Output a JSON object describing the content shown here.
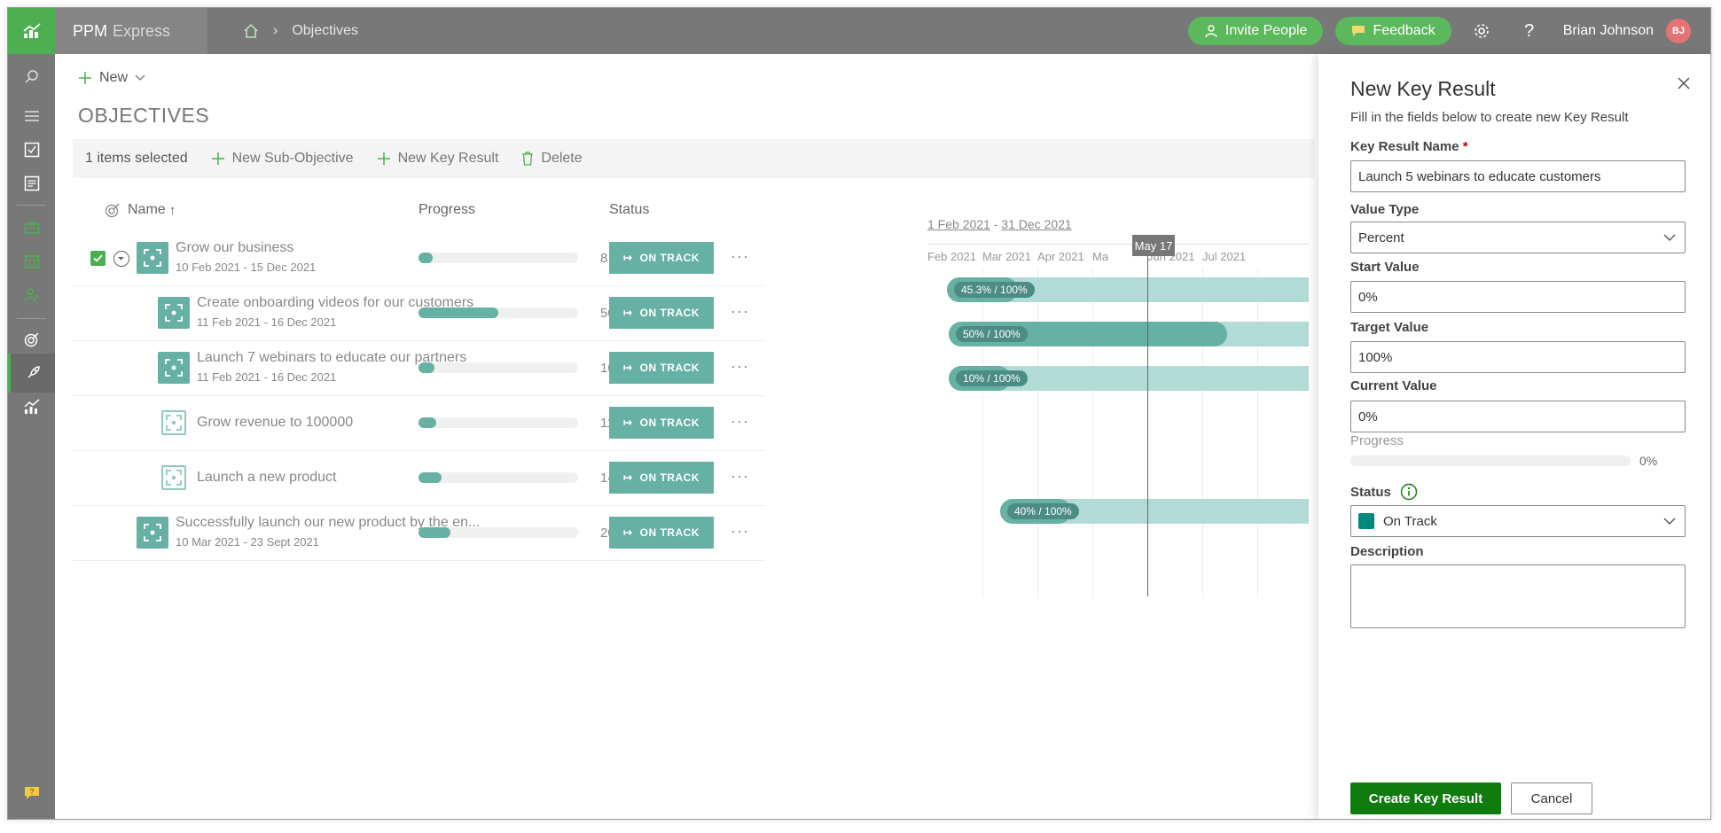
{
  "app": {
    "name": "PPM",
    "name_sub": "Express",
    "accent": "#4caf50"
  },
  "breadcrumb": {
    "current": "Objectives"
  },
  "topbar": {
    "invite_label": "Invite People",
    "feedback_label": "Feedback",
    "help_label": "?",
    "user_name": "Brian Johnson",
    "user_initials": "BJ"
  },
  "toolbar": {
    "new_label": "New"
  },
  "page": {
    "title": "OBJECTIVES"
  },
  "cmdbar": {
    "selected_label": "1 items selected",
    "new_sub_objective": "New Sub-Objective",
    "new_key_result": "New Key Result",
    "delete_label": "Delete"
  },
  "columns": {
    "name": "Name",
    "progress": "Progress",
    "status": "Status"
  },
  "rows": [
    {
      "name": "Grow our business",
      "dates": "10 Feb 2021 - 15 Dec 2021",
      "progress": 8.9,
      "progress_label": "8.9%",
      "status": "ON TRACK",
      "timeline_label": "45.3% / 100%"
    },
    {
      "name": "Create onboarding videos for our customers",
      "dates": "11 Feb 2021 - 16 Dec 2021",
      "progress": 50,
      "progress_label": "50%",
      "status": "ON TRACK",
      "timeline_label": "50% / 100%"
    },
    {
      "name": "Launch 7 webinars to educate our partners",
      "dates": "11 Feb 2021 - 16 Dec 2021",
      "progress": 10,
      "progress_label": "10%",
      "status": "ON TRACK",
      "timeline_label": "10% / 100%"
    },
    {
      "name": "Grow revenue to 100000",
      "dates": "",
      "progress": 11.3,
      "progress_label": "11.3%",
      "status": "ON TRACK",
      "timeline_label": ""
    },
    {
      "name": "Launch a new product",
      "dates": "",
      "progress": 14.3,
      "progress_label": "14.3%",
      "status": "ON TRACK",
      "timeline_label": ""
    },
    {
      "name": "Successfully launch our new product by the en...",
      "dates": "10 Mar 2021 - 23 Sept 2021",
      "progress": 20,
      "progress_label": "20%",
      "status": "ON TRACK",
      "timeline_label": "40% / 100%"
    }
  ],
  "timeline": {
    "range_start": "1 Feb 2021",
    "range_sep": " - ",
    "range_end": "31 Dec 2021",
    "months": [
      "Feb 2021",
      "Mar 2021",
      "Apr 2021",
      "Ma",
      "Jun 2021",
      "Jul 2021"
    ],
    "today_label": "May 17"
  },
  "panel": {
    "title": "New Key Result",
    "subtitle": "Fill in the fields below to create new Key Result",
    "name_label": "Key Result Name",
    "name_required": "*",
    "name_value": "Launch 5 webinars to educate customers",
    "value_type_label": "Value Type",
    "value_type_value": "Percent",
    "start_label": "Start Value",
    "start_value": "0%",
    "target_label": "Target Value",
    "target_value": "100%",
    "current_label": "Current Value",
    "current_value": "0%",
    "progress_label": "Progress",
    "progress_value": "0%",
    "status_label": "Status",
    "status_value": "On Track",
    "status_color": "#00897b",
    "description_label": "Description",
    "description_value": "",
    "create_label": "Create Key Result",
    "cancel_label": "Cancel"
  }
}
